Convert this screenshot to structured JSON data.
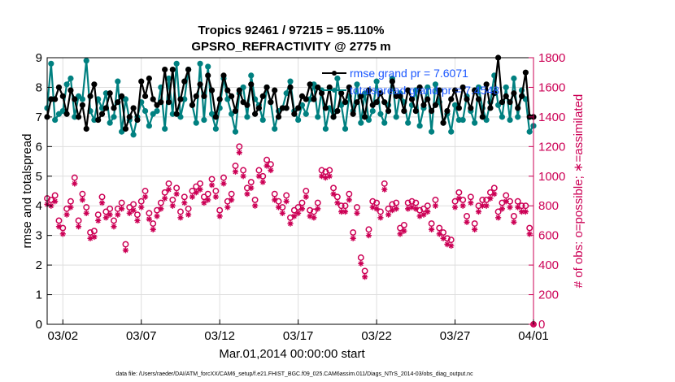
{
  "chart_data": {
    "type": "line",
    "title": "Tropics 92461 / 97215 = 95.110%",
    "subtitle": "GPSRO_REFRACTIVITY @ 2775 m",
    "xlabel": "Mar.01,2014 00:00:00 start",
    "ylabel": "rmse and totalspread",
    "ylabel_right": "# of obs: o=possible; ∗=assimilated",
    "footnote": "data file: /Users/raeder/DAI/ATM_forcXX/CAM6_setup/f.e21.FHIST_BGC.f09_025.CAM6assim.011/Diags_NTrS_2014-03/obs_diag_output.nc",
    "x_ticks": [
      "03/02",
      "03/07",
      "03/12",
      "03/17",
      "03/22",
      "03/27",
      "04/01"
    ],
    "xlim": [
      0,
      31
    ],
    "ylim": [
      0,
      9
    ],
    "y_ticks": [
      "0",
      "1",
      "2",
      "3",
      "4",
      "5",
      "6",
      "7",
      "8",
      "9"
    ],
    "ylim_right": [
      0,
      1800
    ],
    "y_ticks_right": [
      "0",
      "200",
      "400",
      "600",
      "800",
      "1000",
      "1200",
      "1400",
      "1600",
      "1800"
    ],
    "grid": true,
    "legend": {
      "position": "top-right",
      "entries": [
        "rmse grand pr = 7.6071",
        "totalspread grand pr = 7.4548"
      ]
    },
    "colors": {
      "rmse": "#000000",
      "totalspread": "#008080",
      "obs": "#cc0055",
      "grid": "#dedede",
      "legend_text": "#1a56ff"
    },
    "series": [
      {
        "name": "rmse grand pr = 7.6071",
        "x": [
          0.0,
          0.25,
          0.5,
          0.75,
          1.0,
          1.25,
          1.5,
          1.75,
          2.0,
          2.25,
          2.5,
          2.75,
          3.0,
          3.25,
          3.5,
          3.75,
          4.0,
          4.25,
          4.5,
          4.75,
          5.0,
          5.25,
          5.5,
          5.75,
          6.0,
          6.25,
          6.5,
          6.75,
          7.0,
          7.25,
          7.5,
          7.75,
          8.0,
          8.25,
          8.5,
          8.75,
          9.0,
          9.25,
          9.5,
          9.75,
          10.0,
          10.25,
          10.5,
          10.75,
          11.0,
          11.25,
          11.5,
          11.75,
          12.0,
          12.25,
          12.5,
          12.75,
          13.0,
          13.25,
          13.5,
          13.75,
          14.0,
          14.25,
          14.5,
          14.75,
          15.0,
          15.25,
          15.5,
          15.75,
          16.0,
          16.25,
          16.5,
          16.75,
          17.0,
          17.25,
          17.5,
          17.75,
          18.0,
          18.25,
          18.5,
          18.75,
          19.0,
          19.25,
          19.5,
          19.75,
          20.0,
          20.25,
          20.5,
          20.75,
          21.0,
          21.25,
          21.5,
          21.75,
          22.0,
          22.25,
          22.5,
          22.75,
          23.0,
          23.25,
          23.5,
          23.75,
          24.0,
          24.25,
          24.5,
          24.75,
          25.0,
          25.25,
          25.5,
          25.75,
          26.0,
          26.25,
          26.5,
          26.75,
          27.0,
          27.25,
          27.5,
          27.75,
          28.0,
          28.25,
          28.5,
          28.75,
          29.0,
          29.25,
          29.5,
          29.75,
          30.0,
          30.25,
          30.5,
          30.75,
          31.0
        ],
        "values": [
          7.0,
          7.6,
          7.6,
          8.0,
          7.7,
          7.1,
          7.9,
          7.6,
          7.0,
          7.4,
          6.6,
          7.7,
          8.1,
          6.9,
          7.1,
          7.3,
          7.8,
          7.3,
          7.5,
          7.7,
          6.6,
          7.0,
          7.3,
          6.9,
          8.2,
          7.7,
          8.3,
          7.6,
          7.4,
          7.5,
          8.6,
          7.5,
          8.6,
          7.1,
          7.6,
          8.2,
          8.6,
          7.4,
          7.7,
          8.1,
          7.7,
          8.4,
          7.9,
          7.0,
          7.6,
          8.4,
          7.9,
          7.7,
          7.2,
          7.9,
          7.5,
          7.4,
          8.1,
          7.1,
          7.3,
          7.7,
          8.0,
          7.5,
          7.9,
          7.0,
          7.3,
          7.3,
          8.0,
          7.1,
          7.3,
          7.7,
          7.6,
          8.1,
          7.6,
          8.0,
          7.8,
          7.3,
          8.0,
          7.0,
          7.2,
          7.8,
          7.5,
          8.0,
          7.1,
          7.5,
          7.7,
          7.0,
          7.9,
          7.4,
          7.5,
          7.8,
          7.5,
          7.2,
          8.2,
          7.7,
          7.7,
          7.2,
          7.9,
          7.6,
          7.2,
          8.0,
          7.4,
          7.6,
          7.2,
          7.4,
          7.9,
          6.8,
          7.2,
          7.6,
          7.9,
          7.3,
          8.0,
          7.6,
          7.3,
          7.9,
          7.6,
          7.0,
          8.1,
          7.3,
          7.8,
          9.0,
          7.5,
          7.7,
          7.5,
          7.8,
          7.3,
          7.7,
          8.5,
          7.0,
          7.0
        ]
      },
      {
        "name": "totalspread grand pr = 7.4548",
        "x": [
          0.0,
          0.25,
          0.5,
          0.75,
          1.0,
          1.25,
          1.5,
          1.75,
          2.0,
          2.25,
          2.5,
          2.75,
          3.0,
          3.25,
          3.5,
          3.75,
          4.0,
          4.25,
          4.5,
          4.75,
          5.0,
          5.25,
          5.5,
          5.75,
          6.0,
          6.25,
          6.5,
          6.75,
          7.0,
          7.25,
          7.5,
          7.75,
          8.0,
          8.25,
          8.5,
          8.75,
          9.0,
          9.25,
          9.5,
          9.75,
          10.0,
          10.25,
          10.5,
          10.75,
          11.0,
          11.25,
          11.5,
          11.75,
          12.0,
          12.25,
          12.5,
          12.75,
          13.0,
          13.25,
          13.5,
          13.75,
          14.0,
          14.25,
          14.5,
          14.75,
          15.0,
          15.25,
          15.5,
          15.75,
          16.0,
          16.25,
          16.5,
          16.75,
          17.0,
          17.25,
          17.5,
          17.75,
          18.0,
          18.25,
          18.5,
          18.75,
          19.0,
          19.25,
          19.5,
          19.75,
          20.0,
          20.25,
          20.5,
          20.75,
          21.0,
          21.25,
          21.5,
          21.75,
          22.0,
          22.25,
          22.5,
          22.75,
          23.0,
          23.25,
          23.5,
          23.75,
          24.0,
          24.25,
          24.5,
          24.75,
          25.0,
          25.25,
          25.5,
          25.75,
          26.0,
          26.25,
          26.5,
          26.75,
          27.0,
          27.25,
          27.5,
          27.75,
          28.0,
          28.25,
          28.5,
          28.75,
          29.0,
          29.25,
          29.5,
          29.75,
          30.0,
          30.25,
          30.5,
          30.75,
          31.0
        ],
        "values": [
          7.3,
          8.8,
          6.9,
          7.1,
          7.2,
          8.1,
          8.3,
          7.0,
          7.7,
          7.6,
          8.9,
          7.2,
          6.9,
          7.6,
          7.3,
          7.8,
          6.8,
          7.0,
          8.2,
          6.5,
          7.6,
          6.9,
          6.4,
          7.0,
          7.5,
          7.2,
          6.7,
          7.1,
          7.2,
          8.0,
          6.6,
          8.3,
          7.1,
          8.8,
          7.0,
          7.6,
          8.6,
          7.4,
          6.8,
          8.8,
          6.9,
          8.7,
          7.1,
          6.6,
          7.3,
          8.3,
          7.6,
          7.1,
          6.5,
          7.8,
          8.0,
          7.0,
          8.4,
          7.6,
          7.4,
          6.9,
          8.0,
          7.5,
          6.6,
          7.2,
          7.3,
          7.8,
          8.2,
          7.2,
          6.9,
          7.4,
          7.1,
          7.6,
          8.1,
          7.0,
          7.9,
          6.6,
          7.3,
          7.0,
          8.3,
          7.4,
          6.6,
          7.7,
          7.2,
          8.1,
          6.8,
          7.8,
          6.9,
          7.2,
          8.2,
          7.1,
          6.8,
          7.4,
          8.3,
          7.0,
          7.8,
          7.5,
          6.8,
          7.4,
          7.9,
          6.7,
          7.3,
          8.0,
          6.5,
          8.1,
          7.5,
          6.8,
          7.1,
          6.5,
          7.4,
          6.9,
          6.9,
          7.7,
          7.2,
          6.8,
          8.0,
          7.3,
          6.9,
          7.5,
          8.4,
          7.4,
          7.0,
          8.0,
          6.9,
          8.3,
          7.0,
          7.9,
          7.6,
          6.5,
          6.7
        ]
      },
      {
        "name": "obs possible",
        "marker": "o",
        "axis": "right",
        "x": [
          0.0,
          0.25,
          0.5,
          0.75,
          1.0,
          1.25,
          1.5,
          1.75,
          2.0,
          2.25,
          2.5,
          2.75,
          3.0,
          3.25,
          3.5,
          3.75,
          4.0,
          4.25,
          4.5,
          4.75,
          5.0,
          5.25,
          5.5,
          5.75,
          6.0,
          6.25,
          6.5,
          6.75,
          7.0,
          7.25,
          7.5,
          7.75,
          8.0,
          8.25,
          8.5,
          8.75,
          9.0,
          9.25,
          9.5,
          9.75,
          10.0,
          10.25,
          10.5,
          10.75,
          11.0,
          11.25,
          11.5,
          11.75,
          12.0,
          12.25,
          12.5,
          12.75,
          13.0,
          13.25,
          13.5,
          13.75,
          14.0,
          14.25,
          14.5,
          14.75,
          15.0,
          15.25,
          15.5,
          15.75,
          16.0,
          16.25,
          16.5,
          16.75,
          17.0,
          17.25,
          17.5,
          17.75,
          18.0,
          18.25,
          18.5,
          18.75,
          19.0,
          19.25,
          19.5,
          19.75,
          20.0,
          20.25,
          20.5,
          20.75,
          21.0,
          21.25,
          21.5,
          21.75,
          22.0,
          22.25,
          22.5,
          22.75,
          23.0,
          23.25,
          23.5,
          23.75,
          24.0,
          24.25,
          24.5,
          24.75,
          25.0,
          25.25,
          25.5,
          25.75,
          26.0,
          26.25,
          26.5,
          26.75,
          27.0,
          27.25,
          27.5,
          27.75,
          28.0,
          28.25,
          28.5,
          28.75,
          29.0,
          29.25,
          29.5,
          29.75,
          30.0,
          30.25,
          30.5,
          30.75,
          31.0
        ],
        "values": [
          850,
          840,
          870,
          700,
          650,
          780,
          830,
          990,
          700,
          880,
          790,
          620,
          630,
          740,
          860,
          760,
          780,
          700,
          780,
          820,
          540,
          790,
          810,
          740,
          830,
          900,
          750,
          680,
          770,
          820,
          890,
          950,
          840,
          920,
          760,
          860,
          780,
          900,
          930,
          950,
          860,
          880,
          980,
          900,
          770,
          990,
          830,
          880,
          1070,
          1200,
          1040,
          920,
          960,
          840,
          1040,
          1000,
          1110,
          1080,
          880,
          830,
          790,
          870,
          720,
          770,
          790,
          820,
          900,
          770,
          760,
          820,
          1040,
          1030,
          1040,
          920,
          860,
          800,
          800,
          880,
          620,
          790,
          450,
          360,
          640,
          830,
          820,
          760,
          950,
          780,
          810,
          820,
          650,
          670,
          820,
          830,
          820,
          770,
          780,
          800,
          680,
          840,
          650,
          620,
          580,
          570,
          830,
          890,
          840,
          730,
          860,
          680,
          800,
          840,
          840,
          890,
          920,
          760,
          820,
          870,
          830,
          730,
          830,
          800,
          800,
          650,
          0
        ]
      },
      {
        "name": "obs assimilated",
        "marker": "*",
        "axis": "right",
        "x": [
          0.0,
          0.25,
          0.5,
          0.75,
          1.0,
          1.25,
          1.5,
          1.75,
          2.0,
          2.25,
          2.5,
          2.75,
          3.0,
          3.25,
          3.5,
          3.75,
          4.0,
          4.25,
          4.5,
          4.75,
          5.0,
          5.25,
          5.5,
          5.75,
          6.0,
          6.25,
          6.5,
          6.75,
          7.0,
          7.25,
          7.5,
          7.75,
          8.0,
          8.25,
          8.5,
          8.75,
          9.0,
          9.25,
          9.5,
          9.75,
          10.0,
          10.25,
          10.5,
          10.75,
          11.0,
          11.25,
          11.5,
          11.75,
          12.0,
          12.25,
          12.5,
          12.75,
          13.0,
          13.25,
          13.5,
          13.75,
          14.0,
          14.25,
          14.5,
          14.75,
          15.0,
          15.25,
          15.5,
          15.75,
          16.0,
          16.25,
          16.5,
          16.75,
          17.0,
          17.25,
          17.5,
          17.75,
          18.0,
          18.25,
          18.5,
          18.75,
          19.0,
          19.25,
          19.5,
          19.75,
          20.0,
          20.25,
          20.5,
          20.75,
          21.0,
          21.25,
          21.5,
          21.75,
          22.0,
          22.25,
          22.5,
          22.75,
          23.0,
          23.25,
          23.5,
          23.75,
          24.0,
          24.25,
          24.5,
          24.75,
          25.0,
          25.25,
          25.5,
          25.75,
          26.0,
          26.25,
          26.5,
          26.75,
          27.0,
          27.25,
          27.5,
          27.75,
          28.0,
          28.25,
          28.5,
          28.75,
          29.0,
          29.25,
          29.5,
          29.75,
          30.0,
          30.25,
          30.5,
          30.75,
          31.0
        ],
        "values": [
          810,
          800,
          830,
          660,
          610,
          740,
          790,
          950,
          660,
          840,
          750,
          580,
          590,
          700,
          820,
          720,
          740,
          660,
          740,
          780,
          500,
          750,
          770,
          700,
          790,
          860,
          710,
          640,
          730,
          780,
          850,
          910,
          800,
          880,
          720,
          820,
          740,
          860,
          890,
          910,
          820,
          840,
          940,
          860,
          730,
          950,
          790,
          840,
          1030,
          1160,
          1000,
          880,
          920,
          800,
          1000,
          960,
          1070,
          1040,
          840,
          790,
          750,
          830,
          680,
          730,
          750,
          780,
          860,
          730,
          720,
          780,
          1000,
          990,
          1000,
          880,
          820,
          760,
          760,
          840,
          580,
          750,
          410,
          320,
          600,
          790,
          780,
          720,
          910,
          740,
          770,
          780,
          610,
          630,
          780,
          790,
          780,
          730,
          740,
          760,
          640,
          800,
          610,
          580,
          540,
          530,
          790,
          850,
          800,
          690,
          820,
          640,
          760,
          800,
          800,
          850,
          880,
          720,
          780,
          830,
          790,
          690,
          790,
          760,
          760,
          610,
          0
        ]
      }
    ]
  }
}
